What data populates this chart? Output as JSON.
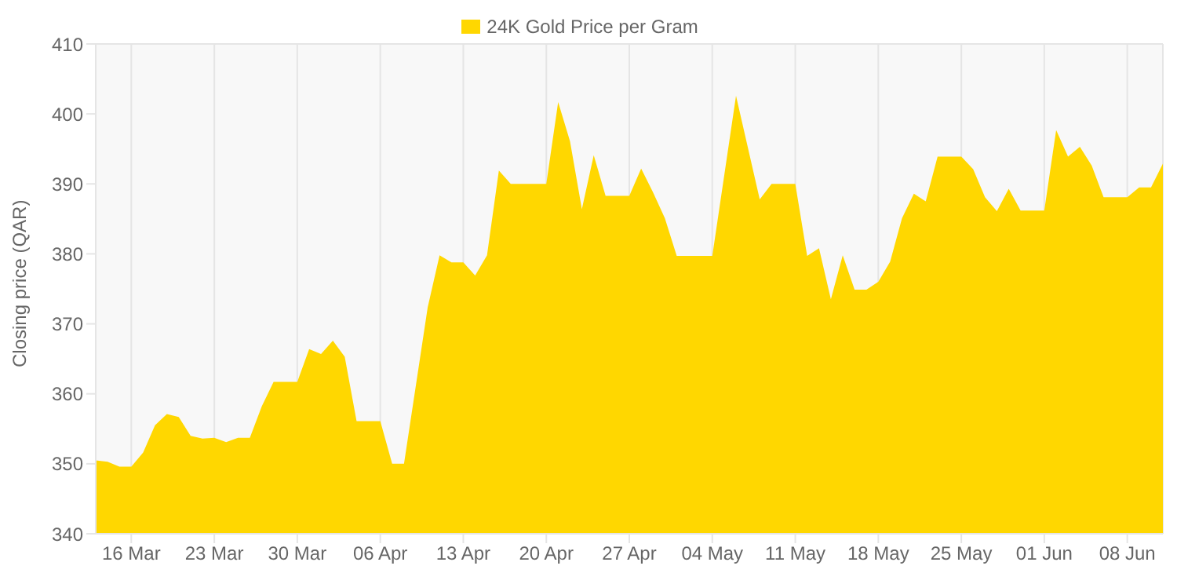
{
  "chart_data": {
    "type": "area",
    "ylabel": "Closing price (QAR)",
    "x": [
      "--03-13",
      "--03-14",
      "--03-15",
      "--03-16",
      "--03-17",
      "--03-18",
      "--03-19",
      "--03-20",
      "--03-21",
      "--03-22",
      "--03-23",
      "--03-24",
      "--03-25",
      "--03-26",
      "--03-27",
      "--03-28",
      "--03-29",
      "--03-30",
      "--03-31",
      "--04-01",
      "--04-02",
      "--04-03",
      "--04-04",
      "--04-05",
      "--04-06",
      "--04-07",
      "--04-08",
      "--04-10",
      "--04-11",
      "--04-12",
      "--04-13",
      "--04-14",
      "--04-15",
      "--04-16",
      "--04-17",
      "--04-18",
      "--04-19",
      "--04-20",
      "--04-21",
      "--04-22",
      "--04-23",
      "--04-24",
      "--04-25",
      "--04-26",
      "--04-27",
      "--04-28",
      "--04-29",
      "--04-30",
      "--05-01",
      "--05-02",
      "--05-03",
      "--05-04",
      "--05-06",
      "--05-08",
      "--05-09",
      "--05-10",
      "--05-11",
      "--05-12",
      "--05-13",
      "--05-14",
      "--05-15",
      "--05-16",
      "--05-17",
      "--05-18",
      "--05-19",
      "--05-20",
      "--05-21",
      "--05-22",
      "--05-23",
      "--05-24",
      "--05-25",
      "--05-26",
      "--05-27",
      "--05-28",
      "--05-29",
      "--05-30",
      "--05-31",
      "--06-01",
      "--06-02",
      "--06-03",
      "--06-04",
      "--06-05",
      "--06-06",
      "--06-07",
      "--06-08",
      "--06-09",
      "--06-10",
      "--06-11"
    ],
    "series": [
      {
        "name": "24K Gold Price per Gram",
        "color": "#ffd700",
        "values": [
          350.5,
          350.3,
          349.6,
          349.6,
          351.6,
          355.5,
          357.1,
          356.7,
          354.0,
          353.6,
          353.7,
          353.1,
          353.7,
          353.7,
          358.2,
          361.7,
          361.7,
          361.7,
          366.4,
          365.7,
          367.6,
          365.3,
          356.1,
          356.1,
          356.1,
          350.0,
          350.0,
          372.4,
          379.8,
          378.8,
          378.8,
          376.9,
          379.8,
          391.9,
          390.0,
          390.0,
          390.0,
          390.0,
          401.7,
          396.1,
          386.4,
          394.1,
          388.3,
          388.3,
          388.3,
          392.2,
          388.8,
          385.1,
          379.7,
          379.7,
          379.7,
          379.7,
          402.6,
          387.8,
          390.0,
          390.0,
          390.0,
          379.7,
          380.8,
          373.5,
          379.8,
          374.9,
          374.9,
          376.0,
          378.9,
          385.1,
          388.6,
          387.5,
          393.9,
          393.9,
          393.9,
          392.1,
          388.1,
          386.1,
          389.3,
          386.2,
          386.2,
          386.2,
          397.7,
          393.9,
          395.3,
          392.6,
          388.1,
          388.1,
          388.1,
          389.5,
          389.5,
          392.9
        ]
      }
    ],
    "xlim": [
      "--03-13",
      "--06-11"
    ],
    "xticks": [
      {
        "value": "--03-16",
        "label": "16 Mar"
      },
      {
        "value": "--03-23",
        "label": "23 Mar"
      },
      {
        "value": "--03-30",
        "label": "30 Mar"
      },
      {
        "value": "--04-06",
        "label": "06 Apr"
      },
      {
        "value": "--04-13",
        "label": "13 Apr"
      },
      {
        "value": "--04-20",
        "label": "20 Apr"
      },
      {
        "value": "--04-27",
        "label": "27 Apr"
      },
      {
        "value": "--05-04",
        "label": "04 May"
      },
      {
        "value": "--05-11",
        "label": "11 May"
      },
      {
        "value": "--05-18",
        "label": "18 May"
      },
      {
        "value": "--05-25",
        "label": "25 May"
      },
      {
        "value": "--06-01",
        "label": "01 Jun"
      },
      {
        "value": "--06-08",
        "label": "08 Jun"
      }
    ],
    "ylim": [
      340,
      410
    ],
    "yticks": [
      340,
      350,
      360,
      370,
      380,
      390,
      400,
      410
    ],
    "grid": true,
    "legend": "top"
  }
}
